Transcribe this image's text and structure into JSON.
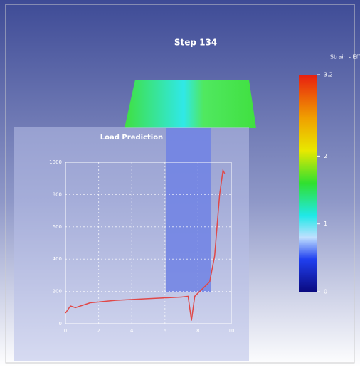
{
  "header": {
    "title": "Step 134"
  },
  "colorbar": {
    "title": "Strain - Eff",
    "lim": [
      0,
      3.2
    ],
    "ticks": [
      0,
      1,
      2,
      3.2
    ]
  },
  "chart_data": {
    "type": "line",
    "title": "Load Prediction",
    "color": "#e04848",
    "x": [
      0,
      0.3,
      0.6,
      1.5,
      3,
      5,
      7,
      7.4,
      7.6,
      7.8,
      8.3,
      8.7,
      9.0,
      9.3,
      9.5,
      9.6
    ],
    "values": [
      66,
      110,
      100,
      130,
      145,
      155,
      165,
      170,
      20,
      170,
      220,
      260,
      420,
      800,
      950,
      930
    ],
    "xlim": [
      0,
      10
    ],
    "xticks": [
      0,
      2,
      4,
      6,
      8,
      10
    ],
    "ylim": [
      0,
      1000
    ],
    "yticks": [
      0,
      200,
      400,
      600,
      800,
      1000
    ],
    "grid": true
  }
}
